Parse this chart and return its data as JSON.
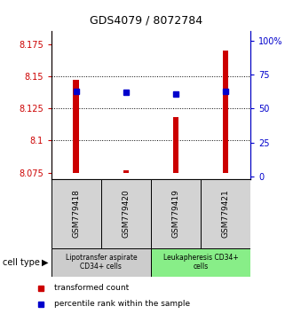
{
  "title": "GDS4079 / 8072784",
  "samples": [
    "GSM779418",
    "GSM779420",
    "GSM779419",
    "GSM779421"
  ],
  "red_values": [
    8.147,
    8.077,
    8.118,
    8.17
  ],
  "blue_values_pct": [
    63,
    62,
    61,
    63
  ],
  "ylim_left": [
    8.07,
    8.185
  ],
  "ylim_right": [
    -2,
    107
  ],
  "yticks_left": [
    8.075,
    8.1,
    8.125,
    8.15,
    8.175
  ],
  "ytick_labels_left": [
    "8.075",
    "8.1",
    "8.125",
    "8.15",
    "8.175"
  ],
  "yticks_right": [
    0,
    25,
    50,
    75,
    100
  ],
  "ytick_labels_right": [
    "0",
    "25",
    "50",
    "75",
    "100%"
  ],
  "cell_type_groups": [
    {
      "label": "Lipotransfer aspirate\nCD34+ cells",
      "color": "#cccccc",
      "cols": [
        0,
        1
      ]
    },
    {
      "label": "Leukapheresis CD34+\ncells",
      "color": "#88ee88",
      "cols": [
        2,
        3
      ]
    }
  ],
  "red_color": "#cc0000",
  "blue_color": "#0000cc",
  "bar_bottom": 8.075,
  "bar_width": 0.12
}
